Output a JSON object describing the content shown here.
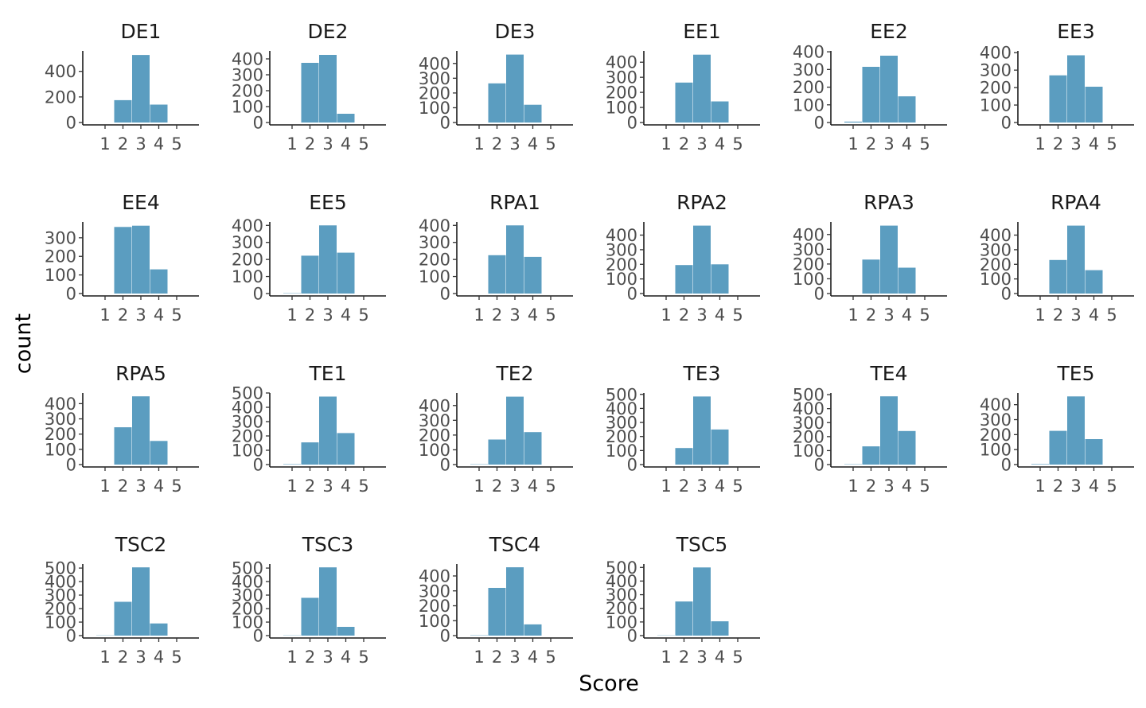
{
  "chart_data": {
    "type": "bar",
    "layout": "faceted small multiples, 6 columns",
    "xlabel": "Score",
    "ylabel": "count",
    "categories": [
      "1",
      "2",
      "3",
      "4",
      "5"
    ],
    "bar_color": "#5b9dc0",
    "grid": false,
    "scales": "free_y",
    "panels": [
      {
        "name": "DE1",
        "values": [
          0,
          175,
          528,
          140,
          0
        ],
        "yticks": [
          0,
          200,
          400
        ],
        "ymax": 560
      },
      {
        "name": "DE2",
        "values": [
          0,
          375,
          425,
          55,
          0
        ],
        "yticks": [
          0,
          100,
          200,
          300,
          400
        ],
        "ymax": 450
      },
      {
        "name": "DE3",
        "values": [
          0,
          265,
          460,
          120,
          0
        ],
        "yticks": [
          0,
          100,
          200,
          300,
          400
        ],
        "ymax": 485
      },
      {
        "name": "EE1",
        "values": [
          0,
          265,
          450,
          140,
          0
        ],
        "yticks": [
          0,
          100,
          200,
          300,
          400
        ],
        "ymax": 475
      },
      {
        "name": "EE2",
        "values": [
          5,
          315,
          378,
          148,
          0
        ],
        "yticks": [
          0,
          100,
          200,
          300,
          400
        ],
        "ymax": 405
      },
      {
        "name": "EE3",
        "values": [
          0,
          270,
          385,
          205,
          0
        ],
        "yticks": [
          0,
          100,
          200,
          300,
          400
        ],
        "ymax": 410
      },
      {
        "name": "EE4",
        "values": [
          0,
          358,
          365,
          130,
          0
        ],
        "yticks": [
          0,
          100,
          200,
          300
        ],
        "ymax": 385
      },
      {
        "name": "EE5",
        "values": [
          2,
          222,
          400,
          240,
          0
        ],
        "yticks": [
          0,
          100,
          200,
          300,
          400
        ],
        "ymax": 420
      },
      {
        "name": "RPA1",
        "values": [
          0,
          225,
          400,
          215,
          0
        ],
        "yticks": [
          0,
          100,
          200,
          300,
          400
        ],
        "ymax": 420
      },
      {
        "name": "RPA2",
        "values": [
          0,
          195,
          465,
          200,
          0
        ],
        "yticks": [
          0,
          100,
          200,
          300,
          400
        ],
        "ymax": 490
      },
      {
        "name": "RPA3",
        "values": [
          0,
          230,
          460,
          175,
          0
        ],
        "yticks": [
          0,
          100,
          200,
          300,
          400
        ],
        "ymax": 485
      },
      {
        "name": "RPA4",
        "values": [
          0,
          230,
          465,
          160,
          0
        ],
        "yticks": [
          0,
          100,
          200,
          300,
          400
        ],
        "ymax": 490
      },
      {
        "name": "RPA5",
        "values": [
          0,
          245,
          448,
          155,
          0
        ],
        "yticks": [
          0,
          100,
          200,
          300,
          400
        ],
        "ymax": 470
      },
      {
        "name": "TE1",
        "values": [
          3,
          155,
          475,
          220,
          0
        ],
        "yticks": [
          0,
          100,
          200,
          300,
          400,
          500
        ],
        "ymax": 500
      },
      {
        "name": "TE2",
        "values": [
          2,
          170,
          460,
          220,
          0
        ],
        "yticks": [
          0,
          100,
          200,
          300,
          400
        ],
        "ymax": 485
      },
      {
        "name": "TE3",
        "values": [
          0,
          118,
          485,
          250,
          0
        ],
        "yticks": [
          0,
          100,
          200,
          300,
          400,
          500
        ],
        "ymax": 510
      },
      {
        "name": "TE4",
        "values": [
          2,
          130,
          488,
          240,
          0
        ],
        "yticks": [
          0,
          100,
          200,
          300,
          400,
          500
        ],
        "ymax": 512
      },
      {
        "name": "TE5",
        "values": [
          3,
          225,
          455,
          170,
          0
        ],
        "yticks": [
          0,
          100,
          200,
          300,
          400
        ],
        "ymax": 478
      },
      {
        "name": "TSC2",
        "values": [
          2,
          250,
          505,
          90,
          0
        ],
        "yticks": [
          0,
          100,
          200,
          300,
          400,
          500
        ],
        "ymax": 530
      },
      {
        "name": "TSC3",
        "values": [
          2,
          280,
          505,
          65,
          0
        ],
        "yticks": [
          0,
          100,
          200,
          300,
          400,
          500
        ],
        "ymax": 530
      },
      {
        "name": "TSC4",
        "values": [
          2,
          320,
          458,
          75,
          0
        ],
        "yticks": [
          0,
          100,
          200,
          300,
          400
        ],
        "ymax": 480
      },
      {
        "name": "TSC5",
        "values": [
          2,
          250,
          500,
          105,
          0
        ],
        "yticks": [
          0,
          100,
          200,
          300,
          400,
          500
        ],
        "ymax": 525
      }
    ]
  }
}
